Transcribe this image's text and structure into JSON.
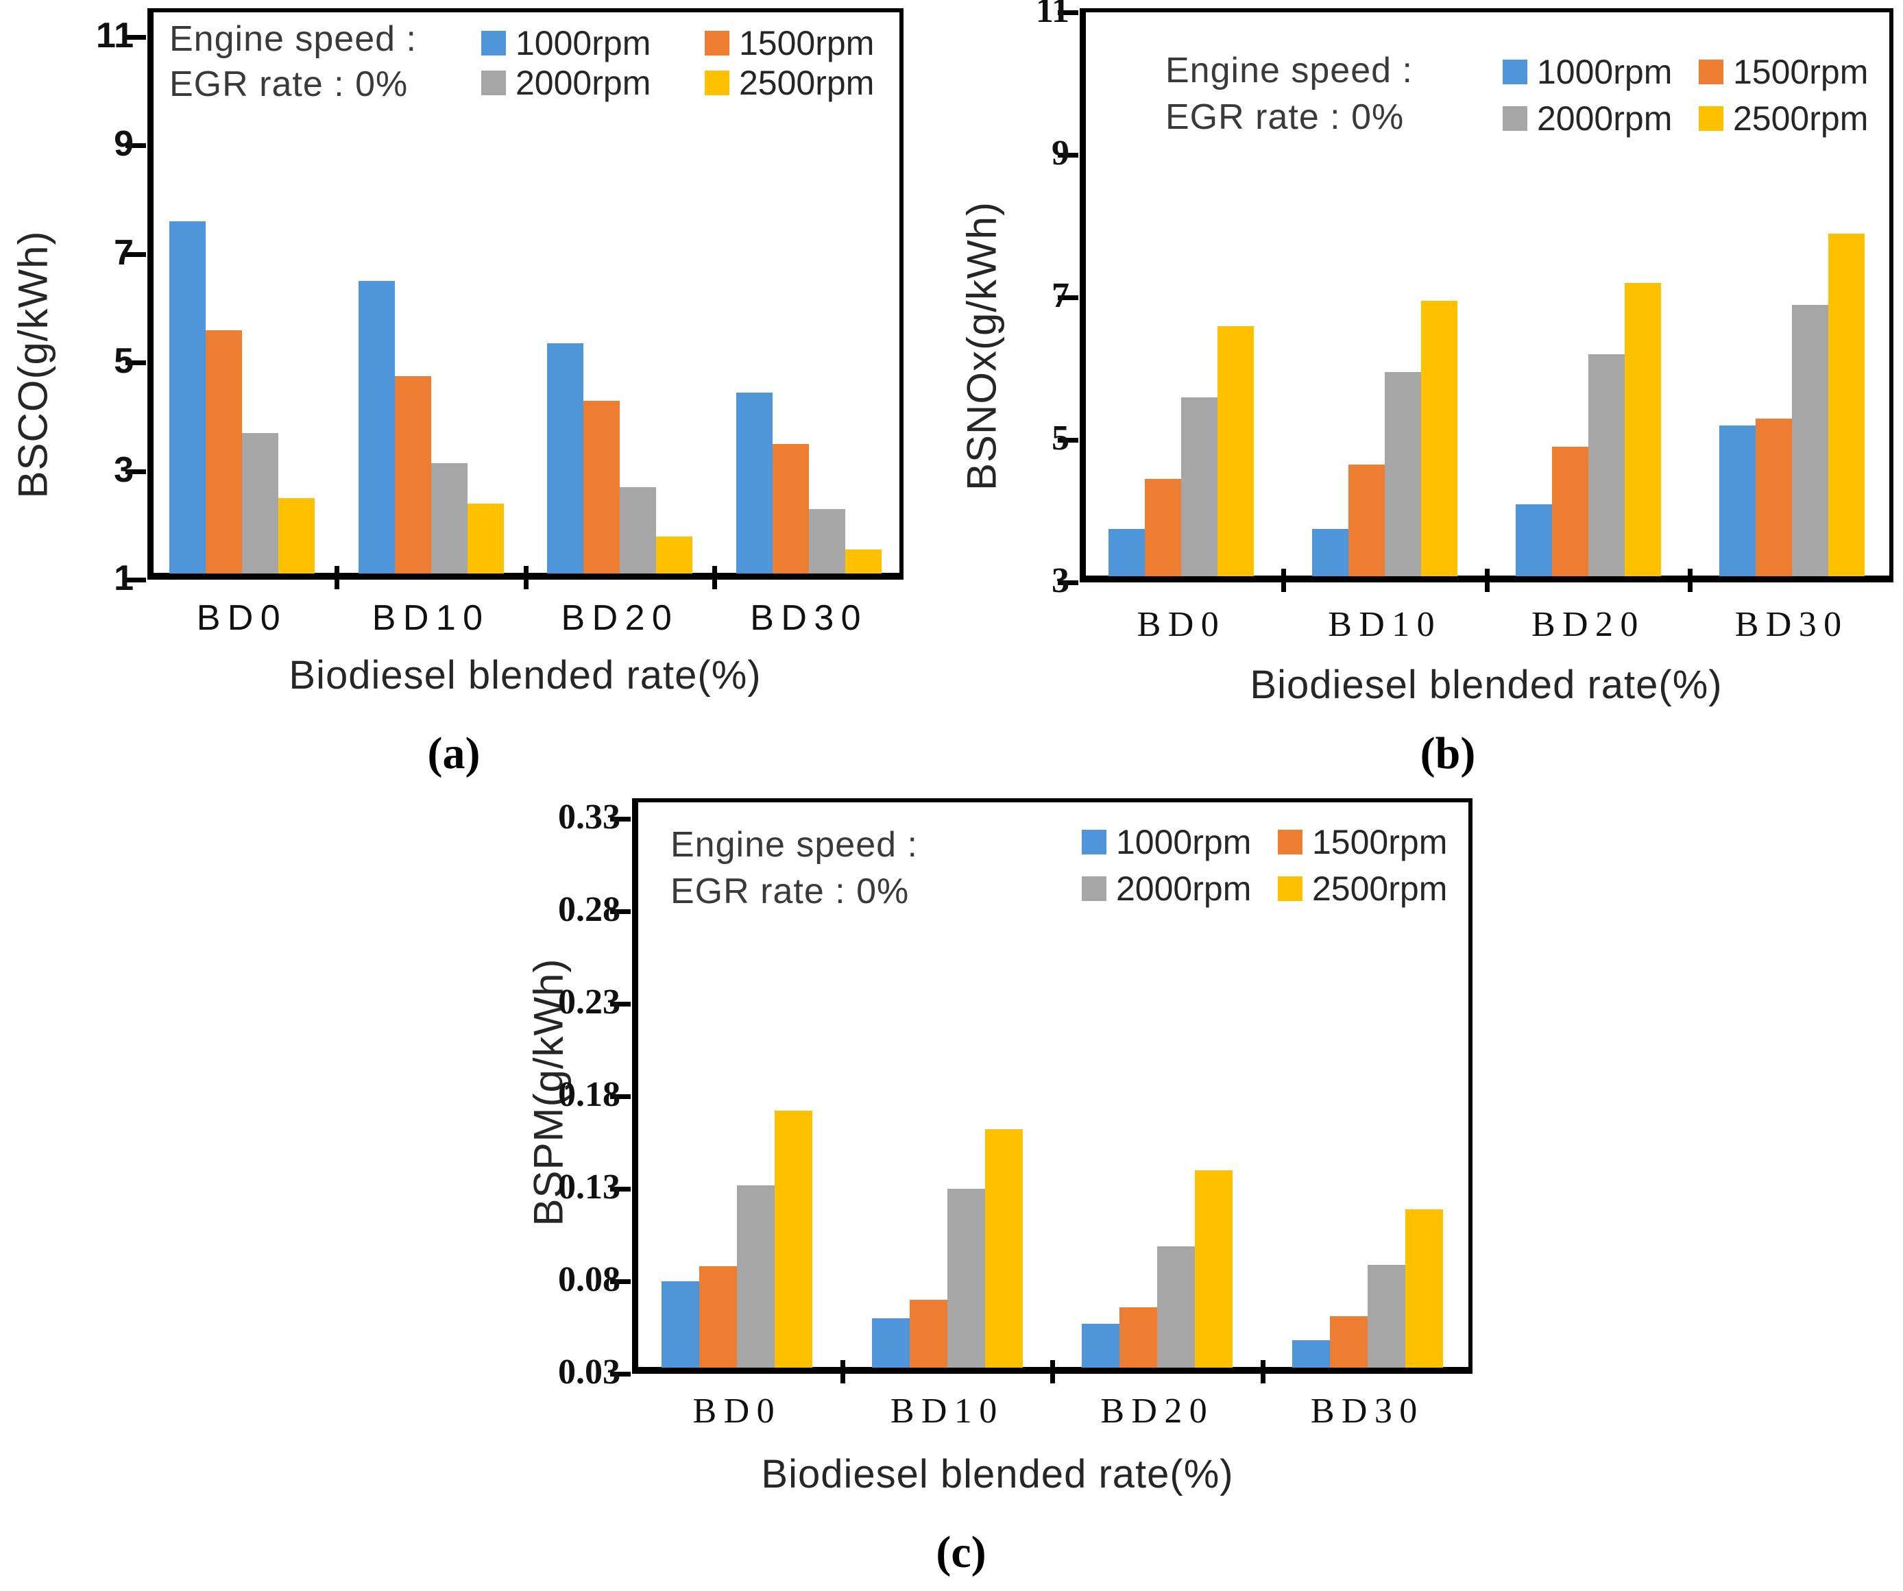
{
  "figure": {
    "background": "#ffffff",
    "annotation_line1": "Engine speed :",
    "annotation_line2": "EGR rate : 0%",
    "xlabel": "Biodiesel blended rate(%)"
  },
  "colors": {
    "rpm1000": "#4E95D9",
    "rpm1500": "#ED7D31",
    "rpm2000": "#A6A6A6",
    "rpm2500": "#FFC000",
    "axis": "#000000"
  },
  "chart_data": [
    {
      "id": "a",
      "type": "bar",
      "sublabel": "(a)",
      "ylabel": "BSCO(g/kWh)",
      "xlabel": "Biodiesel blended rate(%)",
      "annotation": [
        "Engine speed :",
        "EGR rate : 0%"
      ],
      "categories": [
        "BD0",
        "BD10",
        "BD20",
        "BD30"
      ],
      "yticks": [
        "11",
        "9",
        "7",
        "5",
        "3",
        "1"
      ],
      "ylim": [
        1,
        11.53
      ],
      "grid": false,
      "legend_position": "top-inside",
      "series": [
        {
          "name": "1000rpm",
          "color": "#4E95D9",
          "values": [
            7.6,
            6.5,
            5.35,
            4.45
          ]
        },
        {
          "name": "1500rpm",
          "color": "#ED7D31",
          "values": [
            5.6,
            4.75,
            4.3,
            3.5
          ]
        },
        {
          "name": "2000rpm",
          "color": "#A6A6A6",
          "values": [
            3.7,
            3.15,
            2.7,
            2.3
          ]
        },
        {
          "name": "2500rpm",
          "color": "#FFC000",
          "values": [
            2.5,
            2.4,
            1.8,
            1.55
          ]
        }
      ]
    },
    {
      "id": "b",
      "type": "bar",
      "sublabel": "(b)",
      "ylabel": "BSNOx(g/kWh)",
      "xlabel": "Biodiesel blended rate(%)",
      "annotation": [
        "Engine speed :",
        "EGR rate : 0%"
      ],
      "categories": [
        "BD0",
        "BD10",
        "BD20",
        "BD30"
      ],
      "yticks": [
        "11",
        "9",
        "7",
        "5",
        "3"
      ],
      "ylim": [
        3,
        11.06
      ],
      "grid": false,
      "legend_position": "top-inside-right",
      "series": [
        {
          "name": "1000rpm",
          "color": "#4E95D9",
          "values": [
            3.75,
            3.75,
            4.1,
            5.2
          ]
        },
        {
          "name": "1500rpm",
          "color": "#ED7D31",
          "values": [
            4.45,
            4.65,
            4.9,
            5.3
          ]
        },
        {
          "name": "2000rpm",
          "color": "#A6A6A6",
          "values": [
            5.6,
            5.95,
            6.2,
            6.9
          ]
        },
        {
          "name": "2500rpm",
          "color": "#FFC000",
          "values": [
            6.6,
            6.95,
            7.2,
            7.9
          ]
        }
      ]
    },
    {
      "id": "c",
      "type": "bar",
      "sublabel": "(c)",
      "ylabel": "BSPM(g/kWh)",
      "xlabel": "Biodiesel blended rate(%)",
      "annotation": [
        "Engine speed :",
        "EGR rate : 0%"
      ],
      "categories": [
        "BD0",
        "BD10",
        "BD20",
        "BD30"
      ],
      "yticks": [
        "0.33",
        "0.28",
        "0.23",
        "0.18",
        "0.13",
        "0.08",
        "0.03"
      ],
      "ylim": [
        0.03,
        0.341
      ],
      "grid": false,
      "legend_position": "top-inside-right",
      "series": [
        {
          "name": "1000rpm",
          "color": "#4E95D9",
          "values": [
            0.08,
            0.06,
            0.057,
            0.048
          ]
        },
        {
          "name": "1500rpm",
          "color": "#ED7D31",
          "values": [
            0.088,
            0.07,
            0.066,
            0.061
          ]
        },
        {
          "name": "2000rpm",
          "color": "#A6A6A6",
          "values": [
            0.132,
            0.13,
            0.099,
            0.089
          ]
        },
        {
          "name": "2500rpm",
          "color": "#FFC000",
          "values": [
            0.172,
            0.162,
            0.14,
            0.119
          ]
        }
      ]
    }
  ]
}
